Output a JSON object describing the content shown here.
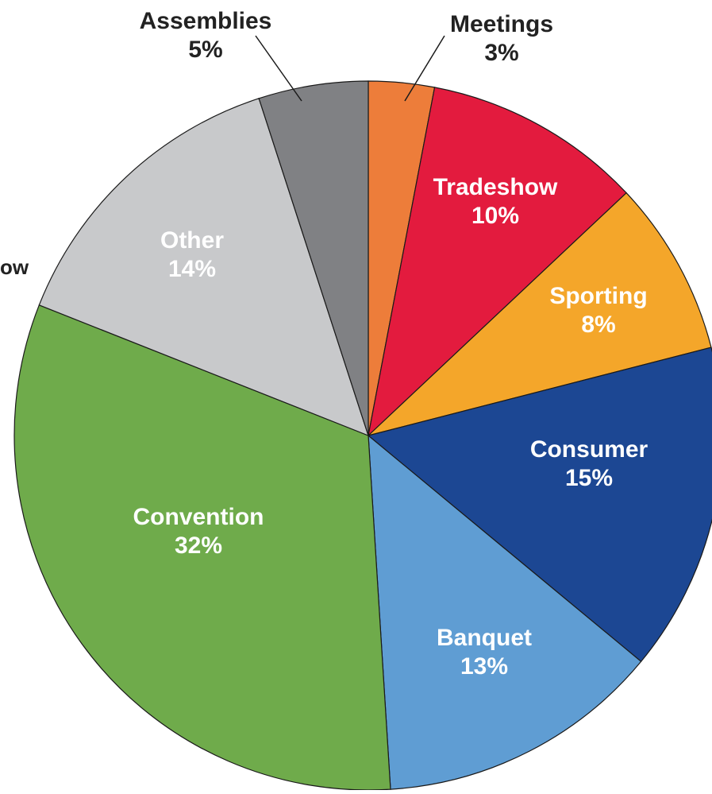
{
  "chart_data": {
    "type": "pie",
    "slices": [
      {
        "label": "Meetings",
        "value": 3,
        "display": "3%",
        "color": "#ED7D3A",
        "label_color": "#222222",
        "label_placement": "outside"
      },
      {
        "label": "Tradeshow",
        "value": 10,
        "display": "10%",
        "color": "#E31B3E",
        "label_color": "#ffffff",
        "label_placement": "inside"
      },
      {
        "label": "Sporting",
        "value": 8,
        "display": "8%",
        "color": "#F4A62A",
        "label_color": "#ffffff",
        "label_placement": "inside"
      },
      {
        "label": "Consumer",
        "value": 15,
        "display": "15%",
        "color": "#1C4793",
        "label_color": "#ffffff",
        "label_placement": "inside"
      },
      {
        "label": "Banquet",
        "value": 13,
        "display": "13%",
        "color": "#5F9DD3",
        "label_color": "#ffffff",
        "label_placement": "inside"
      },
      {
        "label": "Convention",
        "value": 32,
        "display": "32%",
        "color": "#6FAB4B",
        "label_color": "#ffffff",
        "label_placement": "inside"
      },
      {
        "label": "Other",
        "value": 14,
        "display": "14%",
        "color": "#C8C9CB",
        "label_color": "#ffffff",
        "label_placement": "inside"
      },
      {
        "label": "Assemblies",
        "value": 5,
        "display": "5%",
        "color": "#808184",
        "label_color": "#222222",
        "label_placement": "outside"
      }
    ],
    "clipped_label_fragment": "ow",
    "start_angle": "12 o'clock",
    "direction": "clockwise"
  }
}
